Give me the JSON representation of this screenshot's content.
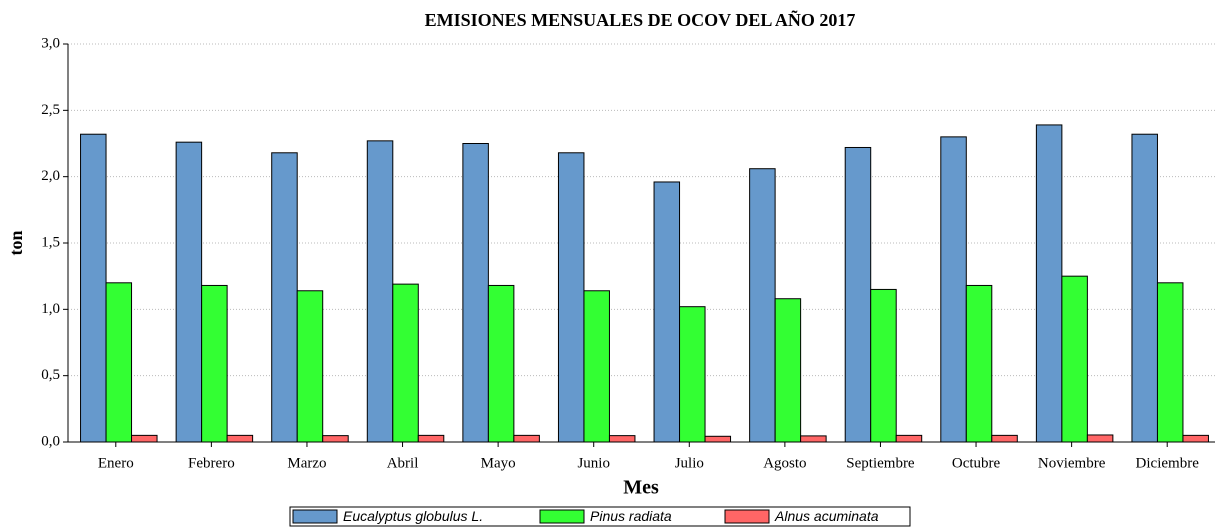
{
  "chart_data": {
    "type": "bar",
    "title": "EMISIONES MENSUALES DE OCOV DEL AÑO 2017",
    "x_label": "Mes",
    "y_label": "ton",
    "categories": [
      "Enero",
      "Febrero",
      "Marzo",
      "Abril",
      "Mayo",
      "Junio",
      "Julio",
      "Agosto",
      "Septiembre",
      "Octubre",
      "Noviembre",
      "Diciembre"
    ],
    "series": [
      {
        "name": "Eucalyptus globulus L.",
        "color": "#6699cc",
        "values": [
          2.32,
          2.26,
          2.18,
          2.27,
          2.25,
          2.18,
          1.96,
          2.06,
          2.22,
          2.3,
          2.39,
          2.32
        ]
      },
      {
        "name": "Pinus radiata",
        "color": "#33ff33",
        "values": [
          1.2,
          1.18,
          1.14,
          1.19,
          1.18,
          1.14,
          1.02,
          1.08,
          1.15,
          1.18,
          1.25,
          1.2
        ]
      },
      {
        "name": "Alnus acuminata",
        "color": "#ff6666",
        "values": [
          0.05,
          0.05,
          0.048,
          0.05,
          0.05,
          0.048,
          0.043,
          0.046,
          0.05,
          0.05,
          0.053,
          0.05
        ]
      }
    ],
    "ylim": [
      0,
      3
    ],
    "yticks": [
      {
        "value": 0,
        "label": "0,0"
      },
      {
        "value": 0.5,
        "label": "0,5"
      },
      {
        "value": 1,
        "label": "1,0"
      },
      {
        "value": 1.5,
        "label": "1,5"
      },
      {
        "value": 2,
        "label": "2,0"
      },
      {
        "value": 2.5,
        "label": "2,5"
      },
      {
        "value": 3,
        "label": "3,0"
      }
    ],
    "grid": true,
    "legend": "bottom"
  }
}
